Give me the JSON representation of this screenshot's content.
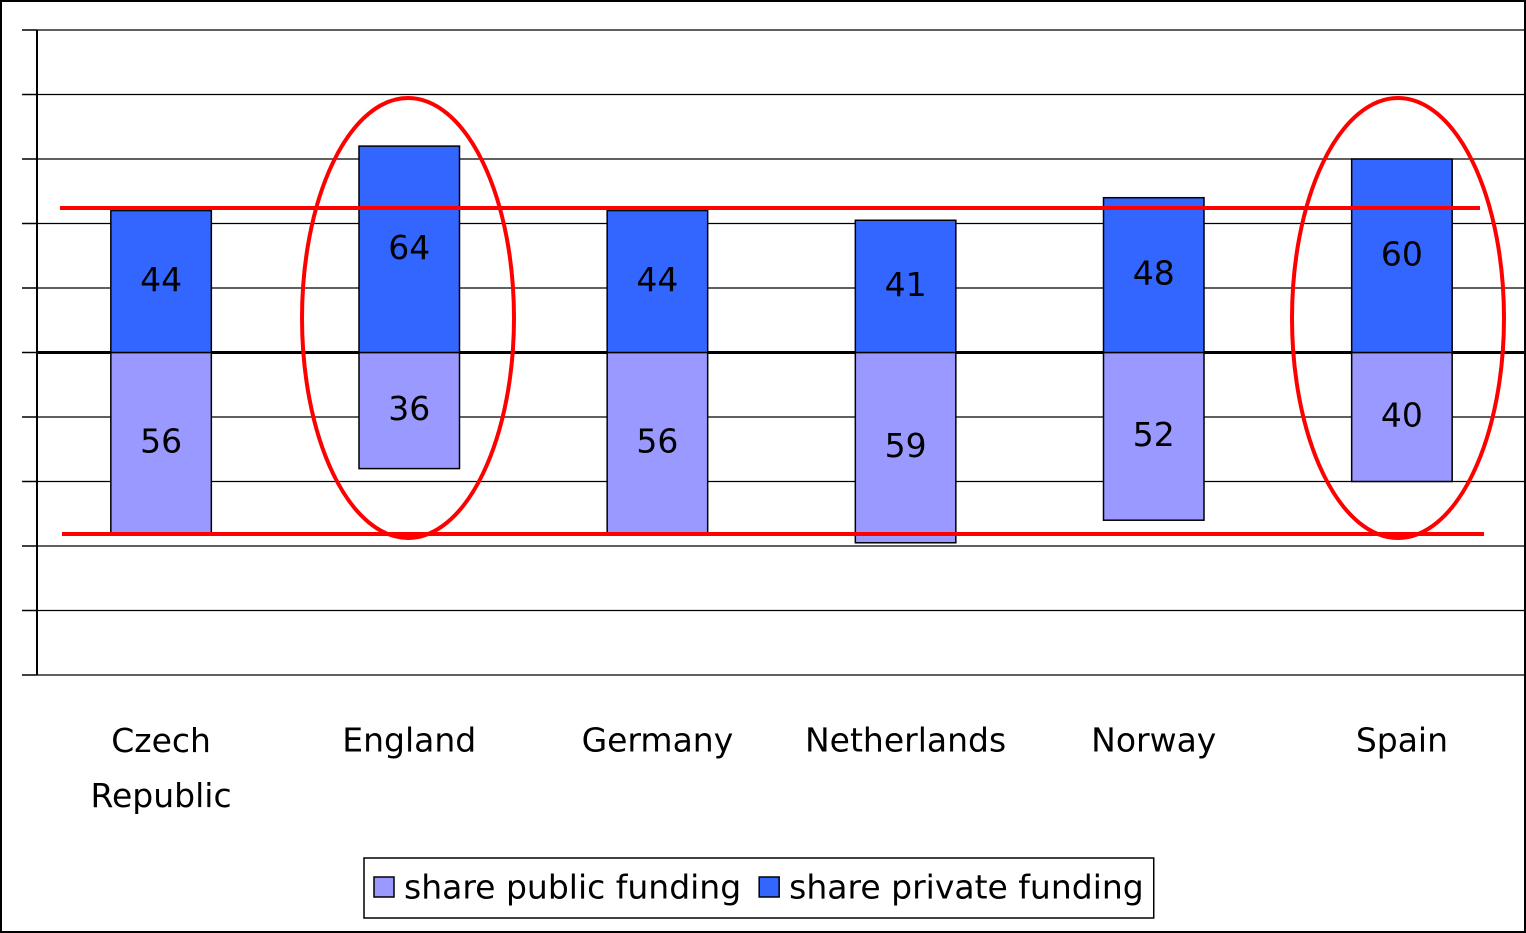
{
  "chart_data": {
    "type": "diverging",
    "categories": [
      "Czech Republic",
      "England",
      "Germany",
      "Netherlands",
      "Norway",
      "Spain"
    ],
    "series": [
      {
        "name": "share public funding",
        "color": "#9999ff",
        "values": [
          56,
          36,
          56,
          59,
          52,
          40
        ]
      },
      {
        "name": "share private funding",
        "color": "#3366ff",
        "values": [
          44,
          64,
          44,
          41,
          48,
          60
        ]
      }
    ],
    "ylim": [
      -100,
      100
    ],
    "yticks": [
      -100,
      -80,
      -60,
      -40,
      -20,
      0,
      20,
      40,
      60,
      80,
      100
    ],
    "grid": true,
    "legend": "bottom"
  }
}
